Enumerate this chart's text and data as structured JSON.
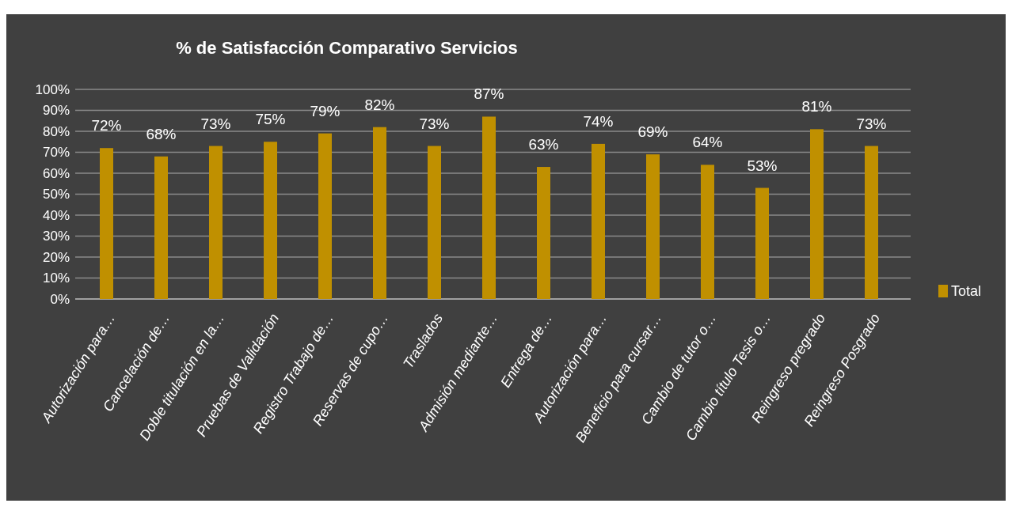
{
  "chart_data": {
    "type": "bar",
    "title": "% de Satisfacción Comparativo Servicios",
    "categories": [
      "Autorización para…",
      "Cancelación de…",
      "Doble titulación en la…",
      "Pruebas de Validación",
      "Registro Trabajo de…",
      "Reservas de cupo…",
      "Traslados",
      "Admisión mediante…",
      "Entrega de…",
      "Autorización para…",
      "Beneficio para cursar…",
      "Cambio de tutor o…",
      "Cambio título Tesis o…",
      "Reingreso pregrado",
      "Reingreso Posgrado"
    ],
    "series": [
      {
        "name": "Total",
        "color": "#c09000",
        "values": [
          72,
          68,
          73,
          75,
          79,
          82,
          73,
          87,
          63,
          74,
          69,
          64,
          53,
          81,
          73
        ],
        "value_labels": [
          "72%",
          "68%",
          "73%",
          "75%",
          "79%",
          "82%",
          "73%",
          "87%",
          "63%",
          "74%",
          "69%",
          "64%",
          "53%",
          "81%",
          "73%"
        ]
      }
    ],
    "ylim": [
      0,
      100
    ],
    "yticks": [
      {
        "value": 0,
        "label": "0%"
      },
      {
        "value": 10,
        "label": "10%"
      },
      {
        "value": 20,
        "label": "20%"
      },
      {
        "value": 30,
        "label": "30%"
      },
      {
        "value": 40,
        "label": "40%"
      },
      {
        "value": 50,
        "label": "50%"
      },
      {
        "value": 60,
        "label": "60%"
      },
      {
        "value": 70,
        "label": "70%"
      },
      {
        "value": 80,
        "label": "80%"
      },
      {
        "value": 90,
        "label": "90%"
      },
      {
        "value": 100,
        "label": "100%"
      }
    ],
    "grid": "y",
    "legend": "right"
  }
}
